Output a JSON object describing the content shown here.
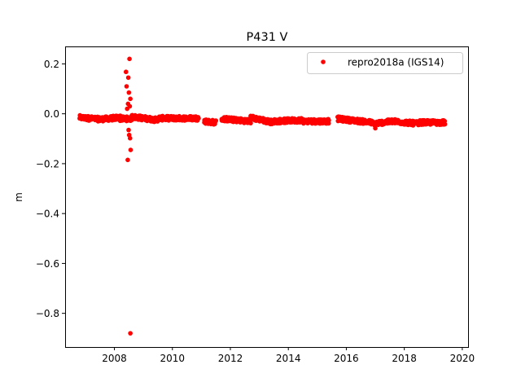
{
  "chart_data": {
    "type": "scatter",
    "title": "P431 V",
    "xlabel": "",
    "ylabel": "m",
    "xlim": [
      2006.3,
      2020.2
    ],
    "ylim": [
      -0.935,
      0.27
    ],
    "xticks": [
      2008,
      2010,
      2012,
      2014,
      2016,
      2018,
      2020
    ],
    "yticks": [
      0.2,
      0.0,
      -0.2,
      -0.4,
      -0.6,
      -0.8
    ],
    "ytick_labels": [
      "0.2",
      "0.0",
      "−0.2",
      "−0.4",
      "−0.6",
      "−0.8"
    ],
    "grid": false,
    "legend": {
      "placement": "top-right",
      "entries": [
        "repro2018a (IGS14)"
      ]
    },
    "series": [
      {
        "name": "repro2018a (IGS14)",
        "color": "#ff0000",
        "marker": "circle",
        "trend_segments": [
          {
            "x_start": 2006.8,
            "x_end": 2007.5,
            "y_start": -0.015,
            "y_end": -0.022
          },
          {
            "x_start": 2007.5,
            "x_end": 2008.2,
            "y_start": -0.022,
            "y_end": -0.015
          },
          {
            "x_start": 2008.2,
            "x_end": 2008.6,
            "y_start": -0.02,
            "y_end": -0.02
          },
          {
            "x_start": 2008.6,
            "x_end": 2009.5,
            "y_start": -0.012,
            "y_end": -0.025
          },
          {
            "x_start": 2009.5,
            "x_end": 2010.9,
            "y_start": -0.018,
            "y_end": -0.018
          },
          {
            "x_start": 2011.1,
            "x_end": 2011.5,
            "y_start": -0.03,
            "y_end": -0.035
          },
          {
            "x_start": 2011.7,
            "x_end": 2012.7,
            "y_start": -0.02,
            "y_end": -0.03
          },
          {
            "x_start": 2012.7,
            "x_end": 2013.5,
            "y_start": -0.015,
            "y_end": -0.035
          },
          {
            "x_start": 2013.5,
            "x_end": 2014.5,
            "y_start": -0.03,
            "y_end": -0.025
          },
          {
            "x_start": 2014.5,
            "x_end": 2015.4,
            "y_start": -0.03,
            "y_end": -0.03
          },
          {
            "x_start": 2015.7,
            "x_end": 2016.9,
            "y_start": -0.02,
            "y_end": -0.035
          },
          {
            "x_start": 2016.9,
            "x_end": 2017.6,
            "y_start": -0.04,
            "y_end": -0.03
          },
          {
            "x_start": 2017.6,
            "x_end": 2018.5,
            "y_start": -0.03,
            "y_end": -0.04
          },
          {
            "x_start": 2018.5,
            "x_end": 2019.4,
            "y_start": -0.035,
            "y_end": -0.035
          }
        ],
        "outliers": [
          {
            "x": 2008.52,
            "y": 0.22
          },
          {
            "x": 2008.4,
            "y": 0.168
          },
          {
            "x": 2008.48,
            "y": 0.145
          },
          {
            "x": 2008.42,
            "y": 0.11
          },
          {
            "x": 2008.5,
            "y": 0.085
          },
          {
            "x": 2008.55,
            "y": 0.06
          },
          {
            "x": 2008.47,
            "y": 0.04
          },
          {
            "x": 2008.53,
            "y": 0.03
          },
          {
            "x": 2008.44,
            "y": 0.02
          },
          {
            "x": 2008.49,
            "y": -0.065
          },
          {
            "x": 2008.51,
            "y": -0.085
          },
          {
            "x": 2008.54,
            "y": -0.098
          },
          {
            "x": 2008.56,
            "y": -0.145
          },
          {
            "x": 2008.46,
            "y": -0.185
          },
          {
            "x": 2008.55,
            "y": -0.88
          },
          {
            "x": 2017.0,
            "y": -0.058
          }
        ]
      }
    ]
  }
}
